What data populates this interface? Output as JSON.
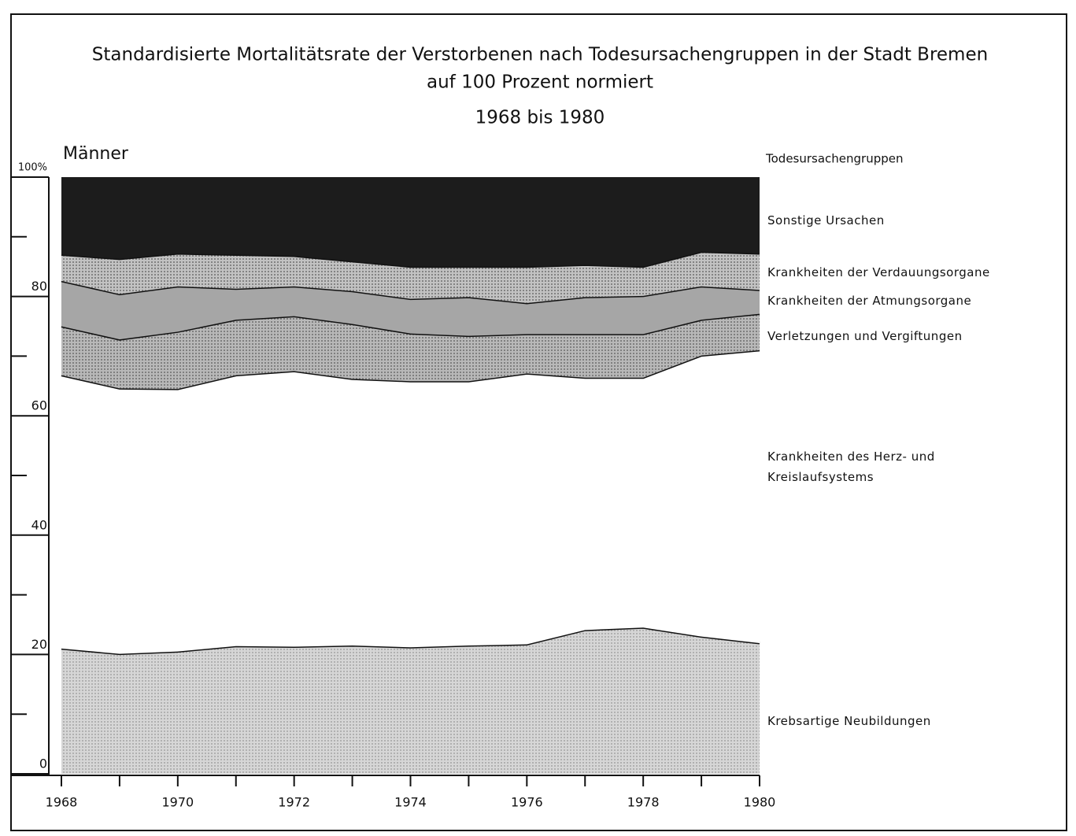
{
  "chart_data": {
    "type": "stacked-area",
    "title": "Standardisierte Mortalitätsrate der Verstorbenen nach Todesursachengruppen in der Stadt Bremen",
    "title_line2": "auf  100 Prozent normiert",
    "subtitle": "1968 bis 1980",
    "panel_label": "Männer",
    "legend_title": "Todesursachengruppen",
    "x": [
      1968,
      1969,
      1970,
      1971,
      1972,
      1973,
      1974,
      1975,
      1976,
      1977,
      1978,
      1979,
      1980
    ],
    "xlim": [
      1968,
      1980
    ],
    "xticks": [
      1968,
      1970,
      1972,
      1974,
      1976,
      1978,
      1980
    ],
    "ylim": [
      0,
      100
    ],
    "yticks": [
      0,
      20,
      40,
      60,
      80,
      {
        "value": 100,
        "label": "100%"
      }
    ],
    "series": [
      {
        "name": "Krebsartige Neubildungen",
        "color": "#d6d6d6",
        "values": [
          21.0,
          20.1,
          20.5,
          21.4,
          21.3,
          21.5,
          21.2,
          21.5,
          21.7,
          24.1,
          24.5,
          23.0,
          21.9
        ]
      },
      {
        "name": "Krankheiten des Herz- und Kreislaufsystems",
        "color": "#ffffff",
        "values": [
          45.8,
          44.5,
          44.0,
          45.4,
          46.2,
          44.7,
          44.6,
          44.3,
          45.4,
          42.3,
          41.9,
          47.1,
          49.1
        ]
      },
      {
        "name": "Verletzungen und Vergiftungen",
        "color": "#b8b8b8",
        "values": [
          8.2,
          8.2,
          9.6,
          9.3,
          9.2,
          9.2,
          8.0,
          7.6,
          6.6,
          7.3,
          7.3,
          6.0,
          6.1
        ]
      },
      {
        "name": "Krankheiten der Atmungsorgane",
        "color": "#a6a6a6",
        "values": [
          7.6,
          7.6,
          7.6,
          5.2,
          5.0,
          5.5,
          5.8,
          6.5,
          5.2,
          6.2,
          6.4,
          5.6,
          4.0
        ]
      },
      {
        "name": "Krankheiten der Verdauungsorgane",
        "color": "#c2c2c2",
        "values": [
          4.4,
          5.9,
          5.5,
          5.7,
          5.1,
          5.0,
          5.4,
          5.1,
          6.1,
          5.4,
          4.9,
          5.8,
          6.1
        ]
      },
      {
        "name": "Sonstige Ursachen",
        "color": "#1c1c1c",
        "values": [
          13.0,
          13.7,
          12.8,
          13.0,
          13.2,
          14.1,
          15.0,
          15.0,
          15.0,
          14.7,
          15.0,
          12.5,
          12.8
        ]
      }
    ]
  }
}
